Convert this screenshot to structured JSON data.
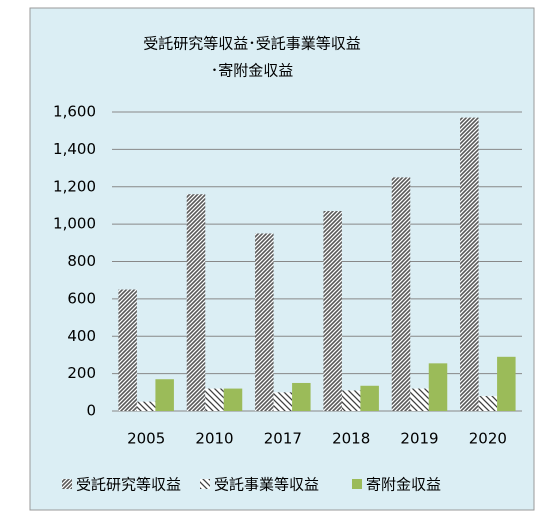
{
  "chart_data": {
    "type": "bar",
    "title": [
      "受託研究等収益･受託事業等収益",
      "･寄附金収益"
    ],
    "categories": [
      "2005",
      "2010",
      "2017",
      "2018",
      "2019",
      "2020"
    ],
    "series": [
      {
        "name": "受託研究等収益",
        "color": "#595959",
        "pattern": "diagonal",
        "values": [
          650,
          1160,
          950,
          1070,
          1250,
          1570
        ]
      },
      {
        "name": "受託事業等収益",
        "color": "#404040",
        "pattern": "back-diagonal",
        "values": [
          50,
          120,
          100,
          110,
          120,
          80
        ]
      },
      {
        "name": "寄附金収益",
        "color": "#9bbb59",
        "pattern": "solid",
        "values": [
          170,
          120,
          150,
          135,
          255,
          290
        ]
      }
    ],
    "ylim": [
      0,
      1600
    ],
    "yticks": [
      0,
      200,
      400,
      600,
      800,
      {
        "value": 1000,
        "label": "1,000"
      },
      {
        "value": 1200,
        "label": "1,200"
      },
      {
        "value": 1400,
        "label": "1,400"
      },
      {
        "value": 1600,
        "label": "1,600"
      }
    ],
    "grid": true,
    "legend": "bottom"
  }
}
